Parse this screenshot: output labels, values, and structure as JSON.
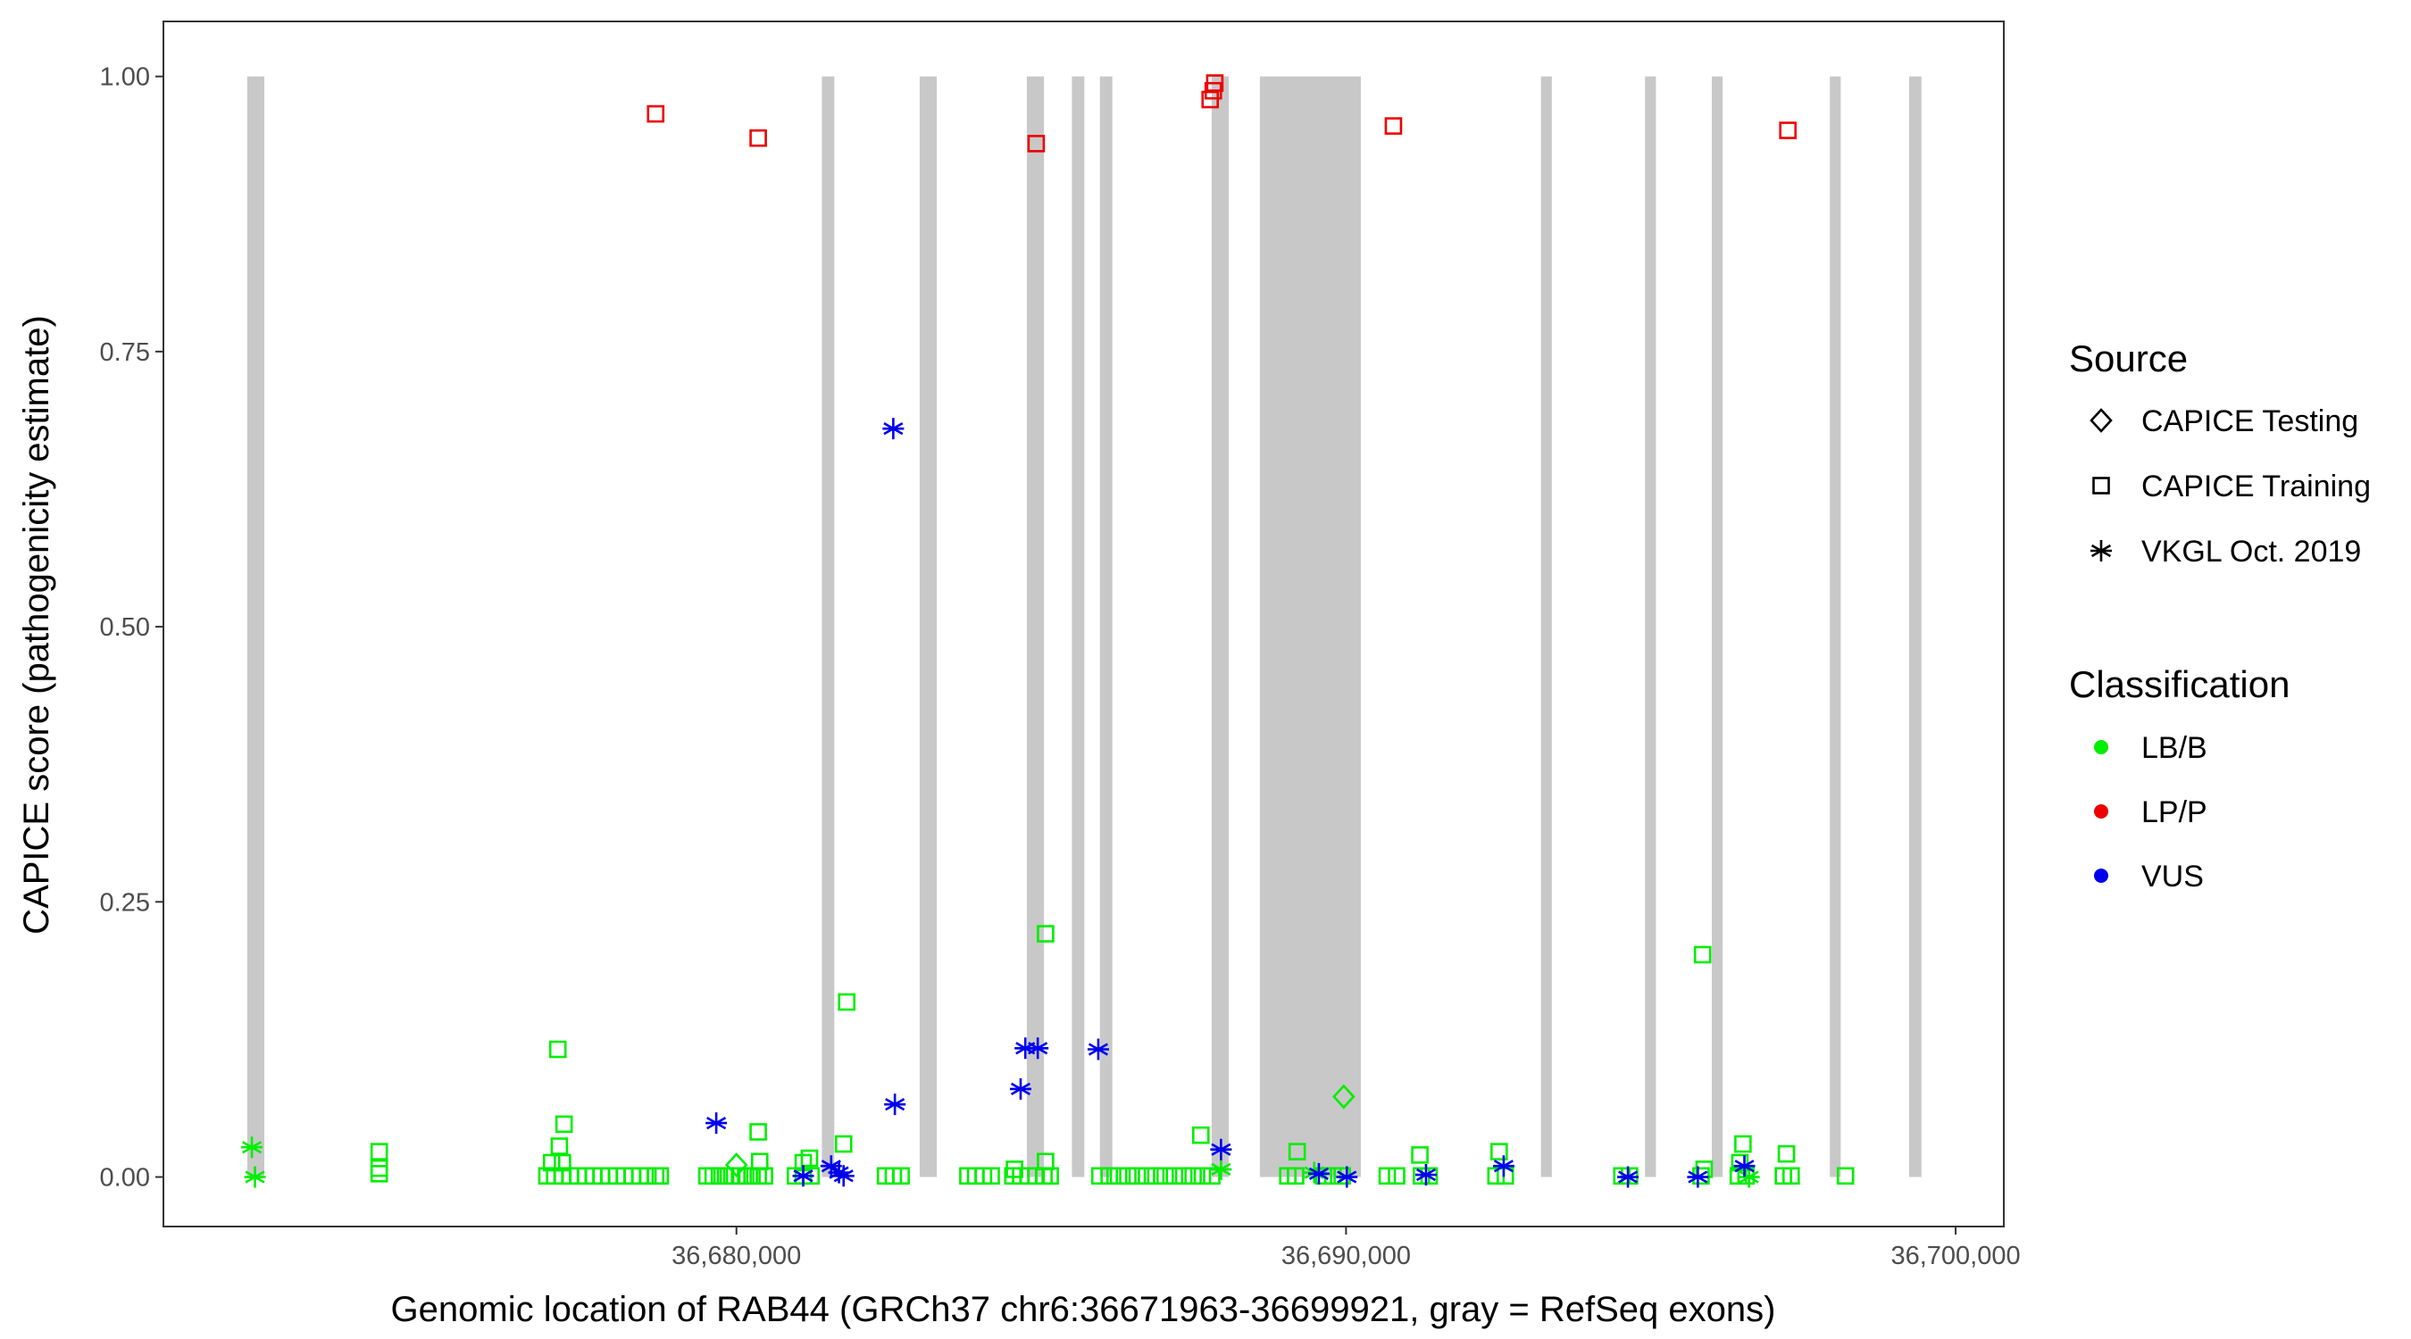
{
  "chart_data": {
    "type": "scatter",
    "xlabel": "Genomic location of RAB44 (GRCh37 chr6:36671963-36699921, gray = RefSeq exons)",
    "ylabel": "CAPICE score (pathogenicity estimate)",
    "xlim": [
      36670600,
      36700790
    ],
    "ylim": [
      -0.045,
      1.05
    ],
    "x_ticks": [
      36680000,
      36690000,
      36700000
    ],
    "x_tick_labels": [
      "36,680,000",
      "36,690,000",
      "36,700,000"
    ],
    "y_ticks": [
      0,
      0.25,
      0.5,
      0.75,
      1.0
    ],
    "y_tick_labels": [
      "0.00",
      "0.25",
      "0.50",
      "0.75",
      "1.00"
    ],
    "grid": false,
    "exons": [
      [
        36671975,
        36672255
      ],
      [
        36681401,
        36681605
      ],
      [
        36683006,
        36683287
      ],
      [
        36684764,
        36685045
      ],
      [
        36685503,
        36685707
      ],
      [
        36685962,
        36686166
      ],
      [
        36687796,
        36688076
      ],
      [
        36688586,
        36690242
      ],
      [
        36693197,
        36693376
      ],
      [
        36694904,
        36695083
      ],
      [
        36696000,
        36696178
      ],
      [
        36697936,
        36698115
      ],
      [
        36699236,
        36699439
      ]
    ],
    "exon_color": "#c8c8c8",
    "legend": {
      "placement": "right",
      "source_title": "Source",
      "source_items": [
        {
          "label": "CAPICE Testing",
          "shape": "diamond"
        },
        {
          "label": "CAPICE Training",
          "shape": "square"
        },
        {
          "label": "VKGL Oct. 2019",
          "shape": "asterisk"
        }
      ],
      "classification_title": "Classification",
      "classification_items": [
        {
          "label": "LB/B",
          "color": "#00ee00"
        },
        {
          "label": "LP/P",
          "color": "#ee0000"
        },
        {
          "label": "VUS",
          "color": "#0000ee"
        }
      ]
    },
    "series": [
      {
        "source": "CAPICE Training",
        "classification": "LP/P",
        "points": [
          [
            36678675,
            0.966
          ],
          [
            36680357,
            0.944
          ],
          [
            36684917,
            0.939
          ],
          [
            36687771,
            0.979
          ],
          [
            36687822,
            0.987
          ],
          [
            36687847,
            0.994
          ],
          [
            36690777,
            0.955
          ],
          [
            36697248,
            0.951
          ]
        ]
      },
      {
        "source": "VKGL Oct. 2019",
        "classification": "VUS",
        "points": [
          [
            36682573,
            0.68
          ],
          [
            36682599,
            0.066
          ],
          [
            36679669,
            0.049
          ],
          [
            36684662,
            0.08
          ],
          [
            36684739,
            0.117
          ],
          [
            36684943,
            0.117
          ],
          [
            36685936,
            0.116
          ],
          [
            36687949,
            0.025
          ],
          [
            36681096,
            0.001
          ],
          [
            36681554,
            0.01
          ],
          [
            36681682,
            0.004
          ],
          [
            36681758,
            0.001
          ],
          [
            36690013,
            0.0
          ],
          [
            36689554,
            0.003
          ],
          [
            36691312,
            0.002
          ],
          [
            36692586,
            0.01
          ],
          [
            36694624,
            0.0
          ],
          [
            36695771,
            0.0
          ],
          [
            36696535,
            0.01
          ]
        ]
      },
      {
        "source": "VKGL Oct. 2019",
        "classification": "LB/B",
        "points": [
          [
            36672051,
            0.027
          ],
          [
            36672102,
            0.0
          ],
          [
            36689478,
            0.004
          ],
          [
            36687949,
            0.007
          ],
          [
            36696611,
            0.0
          ]
        ]
      },
      {
        "source": "CAPICE Testing",
        "classification": "LB/B",
        "points": [
          [
            36680000,
            0.011
          ],
          [
            36689962,
            0.073
          ]
        ]
      },
      {
        "source": "CAPICE Training",
        "classification": "LB/B",
        "points": [
          [
            36676891,
            0.001
          ],
          [
            36677019,
            0.001
          ],
          [
            36677146,
            0.001
          ],
          [
            36677274,
            0.001
          ],
          [
            36677401,
            0.001
          ],
          [
            36677528,
            0.001
          ],
          [
            36677656,
            0.001
          ],
          [
            36677783,
            0.001
          ],
          [
            36677911,
            0.001
          ],
          [
            36678038,
            0.001
          ],
          [
            36678165,
            0.001
          ],
          [
            36678293,
            0.001
          ],
          [
            36678420,
            0.001
          ],
          [
            36678548,
            0.001
          ],
          [
            36678675,
            0.001
          ],
          [
            36678751,
            0.001
          ],
          [
            36679516,
            0.001
          ],
          [
            36679618,
            0.001
          ],
          [
            36679720,
            0.001
          ],
          [
            36679822,
            0.001
          ],
          [
            36679924,
            0.001
          ],
          [
            36680051,
            0.001
          ],
          [
            36680153,
            0.001
          ],
          [
            36680255,
            0.001
          ],
          [
            36680357,
            0.001
          ],
          [
            36680459,
            0.001
          ],
          [
            36680968,
            0.001
          ],
          [
            36681096,
            0.001
          ],
          [
            36681223,
            0.001
          ],
          [
            36682446,
            0.001
          ],
          [
            36682574,
            0.001
          ],
          [
            36682701,
            0.001
          ],
          [
            36683797,
            0.001
          ],
          [
            36683924,
            0.001
          ],
          [
            36684052,
            0.001
          ],
          [
            36684179,
            0.001
          ],
          [
            36684535,
            0.001
          ],
          [
            36684663,
            0.001
          ],
          [
            36684790,
            0.001
          ],
          [
            36684917,
            0.001
          ],
          [
            36685045,
            0.001
          ],
          [
            36685147,
            0.001
          ],
          [
            36685962,
            0.001
          ],
          [
            36686115,
            0.001
          ],
          [
            36686268,
            0.001
          ],
          [
            36686421,
            0.001
          ],
          [
            36686574,
            0.001
          ],
          [
            36686727,
            0.001
          ],
          [
            36686880,
            0.001
          ],
          [
            36687032,
            0.001
          ],
          [
            36687185,
            0.001
          ],
          [
            36687338,
            0.001
          ],
          [
            36687491,
            0.001
          ],
          [
            36687644,
            0.001
          ],
          [
            36687797,
            0.001
          ],
          [
            36689045,
            0.001
          ],
          [
            36689173,
            0.001
          ],
          [
            36689631,
            0.001
          ],
          [
            36689784,
            0.001
          ],
          [
            36689937,
            0.001
          ],
          [
            36690676,
            0.001
          ],
          [
            36690829,
            0.001
          ],
          [
            36691237,
            0.001
          ],
          [
            36691364,
            0.001
          ],
          [
            36692460,
            0.001
          ],
          [
            36692613,
            0.001
          ],
          [
            36694524,
            0.001
          ],
          [
            36694651,
            0.001
          ],
          [
            36695823,
            0.001
          ],
          [
            36696435,
            0.001
          ],
          [
            36696562,
            0.001
          ],
          [
            36697174,
            0.001
          ],
          [
            36697301,
            0.001
          ],
          [
            36698193,
            0.001
          ],
          [
            36674140,
            0.023
          ],
          [
            36674140,
            0.008
          ],
          [
            36674140,
            0.003
          ],
          [
            36677070,
            0.116
          ],
          [
            36677172,
            0.048
          ],
          [
            36677095,
            0.028
          ],
          [
            36676968,
            0.013
          ],
          [
            36677146,
            0.013
          ],
          [
            36680357,
            0.041
          ],
          [
            36680382,
            0.014
          ],
          [
            36681198,
            0.017
          ],
          [
            36681096,
            0.013
          ],
          [
            36681809,
            0.159
          ],
          [
            36681758,
            0.03
          ],
          [
            36685071,
            0.221
          ],
          [
            36685071,
            0.014
          ],
          [
            36684561,
            0.007
          ],
          [
            36687618,
            0.038
          ],
          [
            36689198,
            0.023
          ],
          [
            36691211,
            0.02
          ],
          [
            36692511,
            0.023
          ],
          [
            36695849,
            0.202
          ],
          [
            36696511,
            0.03
          ],
          [
            36697224,
            0.021
          ],
          [
            36696460,
            0.013
          ],
          [
            36695874,
            0.007
          ]
        ]
      }
    ]
  }
}
